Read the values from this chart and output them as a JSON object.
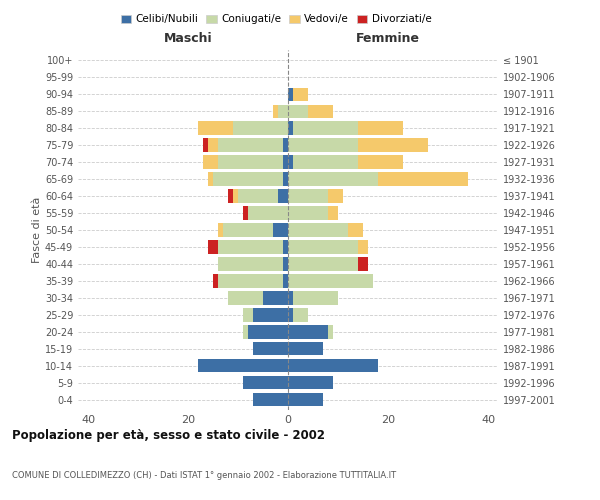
{
  "age_groups": [
    "0-4",
    "5-9",
    "10-14",
    "15-19",
    "20-24",
    "25-29",
    "30-34",
    "35-39",
    "40-44",
    "45-49",
    "50-54",
    "55-59",
    "60-64",
    "65-69",
    "70-74",
    "75-79",
    "80-84",
    "85-89",
    "90-94",
    "95-99",
    "100+"
  ],
  "birth_years": [
    "1997-2001",
    "1992-1996",
    "1987-1991",
    "1982-1986",
    "1977-1981",
    "1972-1976",
    "1967-1971",
    "1962-1966",
    "1957-1961",
    "1952-1956",
    "1947-1951",
    "1942-1946",
    "1937-1941",
    "1932-1936",
    "1927-1931",
    "1922-1926",
    "1917-1921",
    "1912-1916",
    "1907-1911",
    "1902-1906",
    "≤ 1901"
  ],
  "maschi": {
    "celibi": [
      7,
      9,
      18,
      7,
      8,
      7,
      5,
      1,
      1,
      1,
      3,
      0,
      2,
      1,
      1,
      1,
      0,
      0,
      0,
      0,
      0
    ],
    "coniugati": [
      0,
      0,
      0,
      0,
      1,
      2,
      7,
      13,
      13,
      13,
      10,
      8,
      8,
      14,
      13,
      13,
      11,
      2,
      0,
      0,
      0
    ],
    "vedovi": [
      0,
      0,
      0,
      0,
      0,
      0,
      0,
      0,
      0,
      0,
      1,
      0,
      1,
      1,
      3,
      2,
      7,
      1,
      0,
      0,
      0
    ],
    "divorziati": [
      0,
      0,
      0,
      0,
      0,
      0,
      0,
      1,
      0,
      2,
      0,
      1,
      1,
      0,
      0,
      1,
      0,
      0,
      0,
      0,
      0
    ]
  },
  "femmine": {
    "nubili": [
      7,
      9,
      18,
      7,
      8,
      1,
      1,
      0,
      0,
      0,
      0,
      0,
      0,
      0,
      1,
      0,
      1,
      0,
      1,
      0,
      0
    ],
    "coniugate": [
      0,
      0,
      0,
      0,
      1,
      3,
      9,
      17,
      14,
      14,
      12,
      8,
      8,
      18,
      13,
      14,
      13,
      4,
      0,
      0,
      0
    ],
    "vedove": [
      0,
      0,
      0,
      0,
      0,
      0,
      0,
      0,
      0,
      2,
      3,
      2,
      3,
      18,
      9,
      14,
      9,
      5,
      3,
      0,
      0
    ],
    "divorziate": [
      0,
      0,
      0,
      0,
      0,
      0,
      0,
      0,
      2,
      0,
      0,
      0,
      0,
      0,
      0,
      0,
      0,
      0,
      0,
      0,
      0
    ]
  },
  "colors": {
    "celibi": "#3d6fa5",
    "coniugati": "#c7d9a8",
    "vedovi": "#f5c96b",
    "divorziati": "#cc2222"
  },
  "xlim": [
    -42,
    42
  ],
  "title": "Popolazione per età, sesso e stato civile - 2002",
  "subtitle": "COMUNE DI COLLEDIMEZZO (CH) - Dati ISTAT 1° gennaio 2002 - Elaborazione TUTTITALIA.IT",
  "ylabel_left": "Fasce di età",
  "xlabel_maschi": "Maschi",
  "xlabel_femmine": "Femmine",
  "legend_labels": [
    "Celibi/Nubili",
    "Coniugati/e",
    "Vedovi/e",
    "Divorziati/e"
  ],
  "background_color": "#ffffff",
  "grid_color": "#cccccc"
}
